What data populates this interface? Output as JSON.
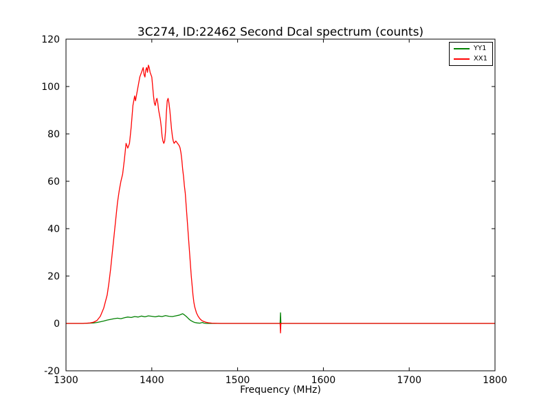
{
  "chart_data": {
    "type": "line",
    "title": "3C274, ID:22462 Second Dcal spectrum (counts)",
    "xlabel": "Frequency (MHz)",
    "ylabel": "",
    "xlim": [
      1300,
      1800
    ],
    "ylim": [
      -20,
      120
    ],
    "xticks": [
      1300,
      1400,
      1500,
      1600,
      1700,
      1800
    ],
    "yticks": [
      -20,
      0,
      20,
      40,
      60,
      80,
      100,
      120
    ],
    "grid": false,
    "legend_position": "upper right",
    "background": "#ffffff",
    "axes_color": "#000000",
    "series": [
      {
        "name": "YY1",
        "color": "#008000",
        "x": [
          1300,
          1320,
          1332,
          1336,
          1340,
          1344,
          1348,
          1352,
          1356,
          1360,
          1364,
          1368,
          1372,
          1376,
          1380,
          1384,
          1388,
          1392,
          1396,
          1400,
          1404,
          1408,
          1412,
          1416,
          1420,
          1424,
          1428,
          1432,
          1434,
          1436,
          1438,
          1440,
          1442,
          1444,
          1446,
          1448,
          1450,
          1453,
          1456,
          1459,
          1461,
          1464,
          1470,
          1500,
          1549.5,
          1550,
          1550.5,
          1600,
          1700,
          1800
        ],
        "y": [
          0,
          0,
          0.2,
          0.4,
          0.7,
          1.0,
          1.4,
          1.7,
          2.0,
          2.2,
          2.0,
          2.4,
          2.7,
          2.5,
          2.9,
          2.7,
          3.1,
          2.8,
          3.2,
          3.0,
          2.8,
          3.1,
          2.9,
          3.3,
          3.0,
          2.9,
          3.2,
          3.5,
          3.8,
          4.1,
          3.6,
          3.0,
          2.3,
          1.6,
          1.1,
          0.7,
          0.4,
          0.2,
          0.1,
          0.4,
          0.1,
          0,
          0,
          0,
          0,
          4.5,
          0,
          0,
          0,
          0
        ]
      },
      {
        "name": "XX1",
        "color": "#ff0000",
        "x": [
          1300,
          1320,
          1328,
          1332,
          1336,
          1340,
          1344,
          1348,
          1350,
          1352,
          1354,
          1356,
          1358,
          1360,
          1362,
          1364,
          1366,
          1368,
          1370,
          1372,
          1374,
          1376,
          1378,
          1380,
          1381,
          1382,
          1384,
          1386,
          1388,
          1390,
          1391,
          1392,
          1393,
          1394,
          1395,
          1396,
          1397,
          1398,
          1400,
          1401,
          1402,
          1403,
          1404,
          1405,
          1406,
          1407,
          1408,
          1409,
          1410,
          1411,
          1412,
          1413,
          1414,
          1415,
          1416,
          1417,
          1418,
          1419,
          1420,
          1421,
          1422,
          1423,
          1424,
          1425,
          1426,
          1428,
          1430,
          1432,
          1433,
          1434,
          1435,
          1436,
          1437,
          1438,
          1439,
          1440,
          1441,
          1442,
          1443,
          1444,
          1445,
          1446,
          1447,
          1448,
          1449,
          1450,
          1452,
          1454,
          1456,
          1458,
          1460,
          1463,
          1466,
          1470,
          1480,
          1500,
          1549.5,
          1550,
          1550.5,
          1551,
          1560,
          1600,
          1650,
          1700,
          1750,
          1800
        ],
        "y": [
          0,
          0,
          0.2,
          0.5,
          1.2,
          3,
          6.5,
          12,
          17,
          23,
          30,
          37,
          44,
          51,
          56,
          60,
          63,
          69,
          76,
          74,
          76,
          83,
          92,
          96,
          94,
          96,
          100,
          104,
          106,
          108,
          105,
          104,
          107,
          108,
          106,
          109,
          108,
          106,
          104,
          100,
          96,
          93,
          92,
          94,
          95,
          93,
          90,
          88,
          86,
          83,
          79,
          77,
          76,
          77,
          81,
          89,
          94,
          95,
          93,
          90,
          86,
          82,
          79,
          77,
          76,
          77,
          76,
          75,
          74,
          72,
          69,
          65,
          62,
          58,
          55,
          50,
          45,
          40,
          35,
          30,
          25,
          20,
          16,
          12,
          9,
          7,
          4.5,
          3,
          2,
          1.3,
          0.9,
          0.5,
          0.3,
          0.1,
          0,
          0,
          0,
          -4,
          0,
          0,
          0,
          0,
          0,
          0,
          0,
          0
        ]
      }
    ]
  }
}
